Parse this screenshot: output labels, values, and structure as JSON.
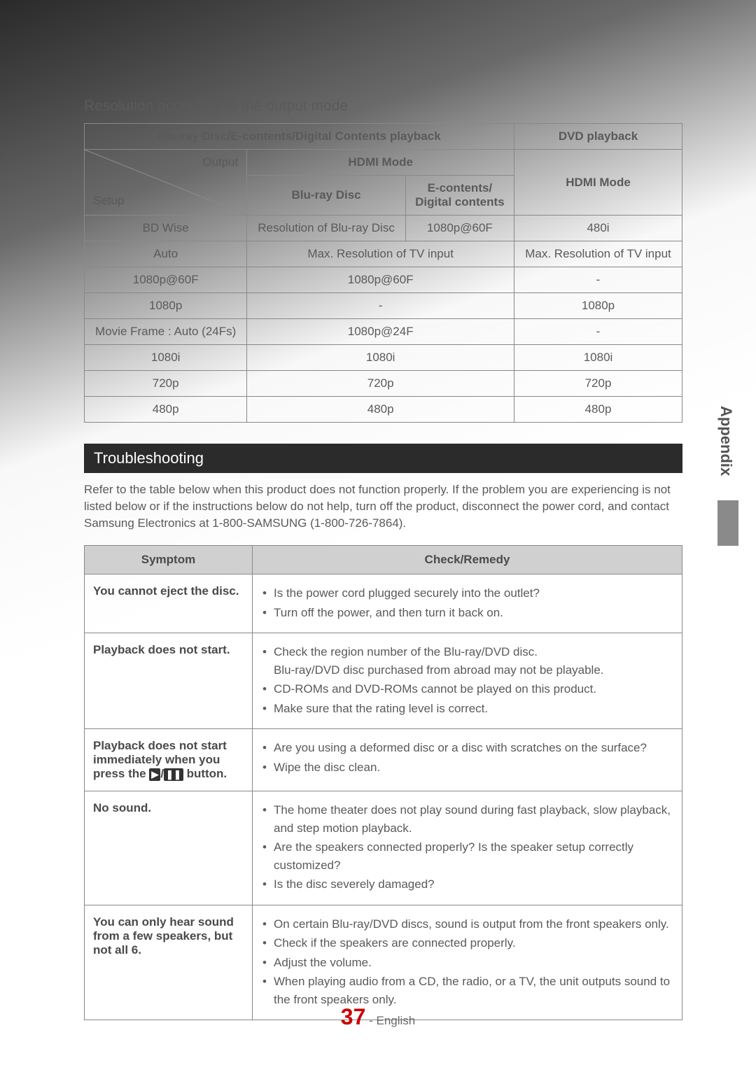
{
  "sideTab": "Appendix",
  "sectionTitle": "Resolution according to the output mode",
  "resTable": {
    "headers": {
      "bluray_group": "Blu-ray Disc/E-contents/Digital Contents playback",
      "dvd_group": "DVD playback",
      "hdmi_mode": "HDMI Mode",
      "bluray_disc": "Blu-ray Disc",
      "econtents": "E-contents/\nDigital contents",
      "output": "Output",
      "setup": "Setup"
    },
    "rows": [
      {
        "setup": "BD Wise",
        "br": "Resolution of Blu-ray Disc",
        "ec": "1080p@60F",
        "dvd": "480i"
      },
      {
        "setup": "Auto",
        "brec": "Max. Resolution of TV input",
        "dvd": "Max. Resolution of TV input"
      },
      {
        "setup": "1080p@60F",
        "brec": "1080p@60F",
        "dvd": "-"
      },
      {
        "setup": "1080p",
        "brec": "-",
        "dvd": "1080p"
      },
      {
        "setup": "Movie Frame : Auto (24Fs)",
        "brec": "1080p@24F",
        "dvd": "-"
      },
      {
        "setup": "1080i",
        "brec": "1080i",
        "dvd": "1080i"
      },
      {
        "setup": "720p",
        "brec": "720p",
        "dvd": "720p"
      },
      {
        "setup": "480p",
        "brec": "480p",
        "dvd": "480p"
      }
    ]
  },
  "troubleshootingTitle": "Troubleshooting",
  "introText": "Refer to the table below when this product does not function properly. If the problem you are experiencing is not listed below or if the instructions below do not help, turn off the product, disconnect the power cord, and contact Samsung Electronics at 1-800-SAMSUNG (1-800-726-7864).",
  "trTable": {
    "headers": {
      "symptom": "Symptom",
      "remedy": "Check/Remedy"
    },
    "rows": [
      {
        "symptom": "You cannot eject the disc.",
        "remedies": [
          "Is the power cord plugged securely into the outlet?",
          "Turn off the power, and then turn it back on."
        ]
      },
      {
        "symptom": "Playback does not start.",
        "remedies": [
          "Check the region number of the Blu-ray/DVD disc.\nBlu-ray/DVD disc purchased from abroad may not be playable.",
          "CD-ROMs and DVD-ROMs cannot be played on this product.",
          "Make sure that the rating level is correct."
        ]
      },
      {
        "symptom_html": "Playback does not start immediately when you press the [PLAYPAUSE] button.",
        "remedies": [
          "Are you using a deformed disc or a disc with scratches on the surface?",
          "Wipe the disc clean."
        ]
      },
      {
        "symptom": "No sound.",
        "remedies": [
          "The home theater does not play sound during fast playback, slow playback, and step motion playback.",
          "Are the speakers connected properly? Is the speaker setup correctly customized?",
          "Is the disc severely damaged?"
        ]
      },
      {
        "symptom": "You can only hear sound from a few speakers, but not all 6.",
        "remedies": [
          "On certain Blu-ray/DVD discs, sound is output from the front speakers only.",
          "Check if the speakers are connected properly.",
          "Adjust the volume.",
          "When playing audio from a CD, the radio, or a TV, the unit outputs sound to the front speakers only."
        ]
      }
    ]
  },
  "pageNumber": "37",
  "pageLang": "- English",
  "colors": {
    "accent": "#c00000"
  }
}
